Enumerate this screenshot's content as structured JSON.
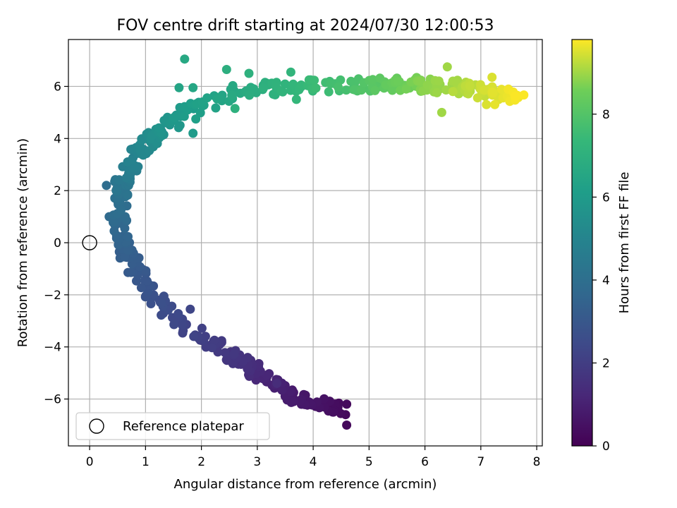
{
  "chart_data": {
    "type": "scatter",
    "title": "FOV centre drift starting at 2024/07/30 12:00:53",
    "xlabel": "Angular distance from reference (arcmin)",
    "ylabel": "Rotation from reference (arcmin)",
    "xlim": [
      -0.38,
      8.1
    ],
    "ylim": [
      -7.8,
      7.8
    ],
    "xticks": [
      0,
      1,
      2,
      3,
      4,
      5,
      6,
      7,
      8
    ],
    "yticks": [
      -6,
      -4,
      -2,
      0,
      2,
      4,
      6
    ],
    "grid": true,
    "legend_position": "lower-left",
    "legend": [
      {
        "label": "Reference platepar",
        "marker": "open-circle"
      }
    ],
    "reference_point": {
      "x": 0,
      "y": 0
    },
    "colorbar": {
      "label": "Hours from first FF file",
      "range": [
        0,
        9.8
      ],
      "ticks": [
        0,
        2,
        4,
        6,
        8
      ],
      "colormap": "viridis"
    },
    "point_series": {
      "name": "",
      "anchors": [
        {
          "t": 0.3,
          "x": 4.45,
          "y": -6.45
        },
        {
          "t": 0.8,
          "x": 3.65,
          "y": -5.9
        },
        {
          "t": 1.3,
          "x": 3.0,
          "y": -5.0
        },
        {
          "t": 1.8,
          "x": 2.5,
          "y": -4.2
        },
        {
          "t": 2.3,
          "x": 1.6,
          "y": -3.2
        },
        {
          "t": 2.9,
          "x": 1.0,
          "y": -1.6
        },
        {
          "t": 3.3,
          "x": 0.65,
          "y": -0.4
        },
        {
          "t": 3.8,
          "x": 0.55,
          "y": 1.0
        },
        {
          "t": 4.3,
          "x": 0.55,
          "y": 2.2
        },
        {
          "t": 4.9,
          "x": 0.8,
          "y": 3.3
        },
        {
          "t": 5.5,
          "x": 1.2,
          "y": 4.2
        },
        {
          "t": 6.0,
          "x": 1.65,
          "y": 5.0
        },
        {
          "t": 6.7,
          "x": 2.7,
          "y": 5.9
        },
        {
          "t": 7.3,
          "x": 3.8,
          "y": 6.0
        },
        {
          "t": 8.0,
          "x": 5.0,
          "y": 6.1
        },
        {
          "t": 8.6,
          "x": 5.7,
          "y": 6.1
        },
        {
          "t": 9.0,
          "x": 6.4,
          "y": 6.0
        },
        {
          "t": 9.4,
          "x": 7.1,
          "y": 5.8
        },
        {
          "t": 9.8,
          "x": 7.7,
          "y": 5.6
        }
      ],
      "extra_points": [
        {
          "t": 0.25,
          "x": 4.6,
          "y": -7.0
        },
        {
          "t": 0.25,
          "x": 4.58,
          "y": -6.6
        },
        {
          "t": 0.28,
          "x": 4.6,
          "y": -6.2
        },
        {
          "t": 0.3,
          "x": 4.35,
          "y": -6.5
        },
        {
          "t": 0.8,
          "x": 3.65,
          "y": -6.1
        },
        {
          "t": 0.8,
          "x": 3.65,
          "y": -5.75
        },
        {
          "t": 1.4,
          "x": 3.35,
          "y": -5.4
        },
        {
          "t": 2.3,
          "x": 1.8,
          "y": -2.55
        },
        {
          "t": 1.9,
          "x": 2.0,
          "y": -3.75
        },
        {
          "t": 3.8,
          "x": 0.35,
          "y": 1.0
        },
        {
          "t": 3.9,
          "x": 0.3,
          "y": 2.2
        },
        {
          "t": 6.6,
          "x": 1.7,
          "y": 7.05
        },
        {
          "t": 6.4,
          "x": 1.6,
          "y": 5.95
        },
        {
          "t": 6.5,
          "x": 1.85,
          "y": 5.95
        },
        {
          "t": 6.2,
          "x": 1.9,
          "y": 4.75
        },
        {
          "t": 6.0,
          "x": 1.85,
          "y": 4.2
        },
        {
          "t": 6.9,
          "x": 2.45,
          "y": 6.65
        },
        {
          "t": 7.0,
          "x": 2.85,
          "y": 6.5
        },
        {
          "t": 7.0,
          "x": 2.6,
          "y": 5.15
        },
        {
          "t": 7.2,
          "x": 3.6,
          "y": 6.55
        },
        {
          "t": 7.3,
          "x": 3.7,
          "y": 5.5
        },
        {
          "t": 9.0,
          "x": 6.3,
          "y": 5.0
        },
        {
          "t": 9.0,
          "x": 6.4,
          "y": 6.75
        },
        {
          "t": 9.2,
          "x": 6.5,
          "y": 5.8
        },
        {
          "t": 9.5,
          "x": 7.1,
          "y": 5.3
        },
        {
          "t": 9.5,
          "x": 7.2,
          "y": 6.35
        },
        {
          "t": 9.6,
          "x": 7.25,
          "y": 5.3
        }
      ]
    }
  }
}
